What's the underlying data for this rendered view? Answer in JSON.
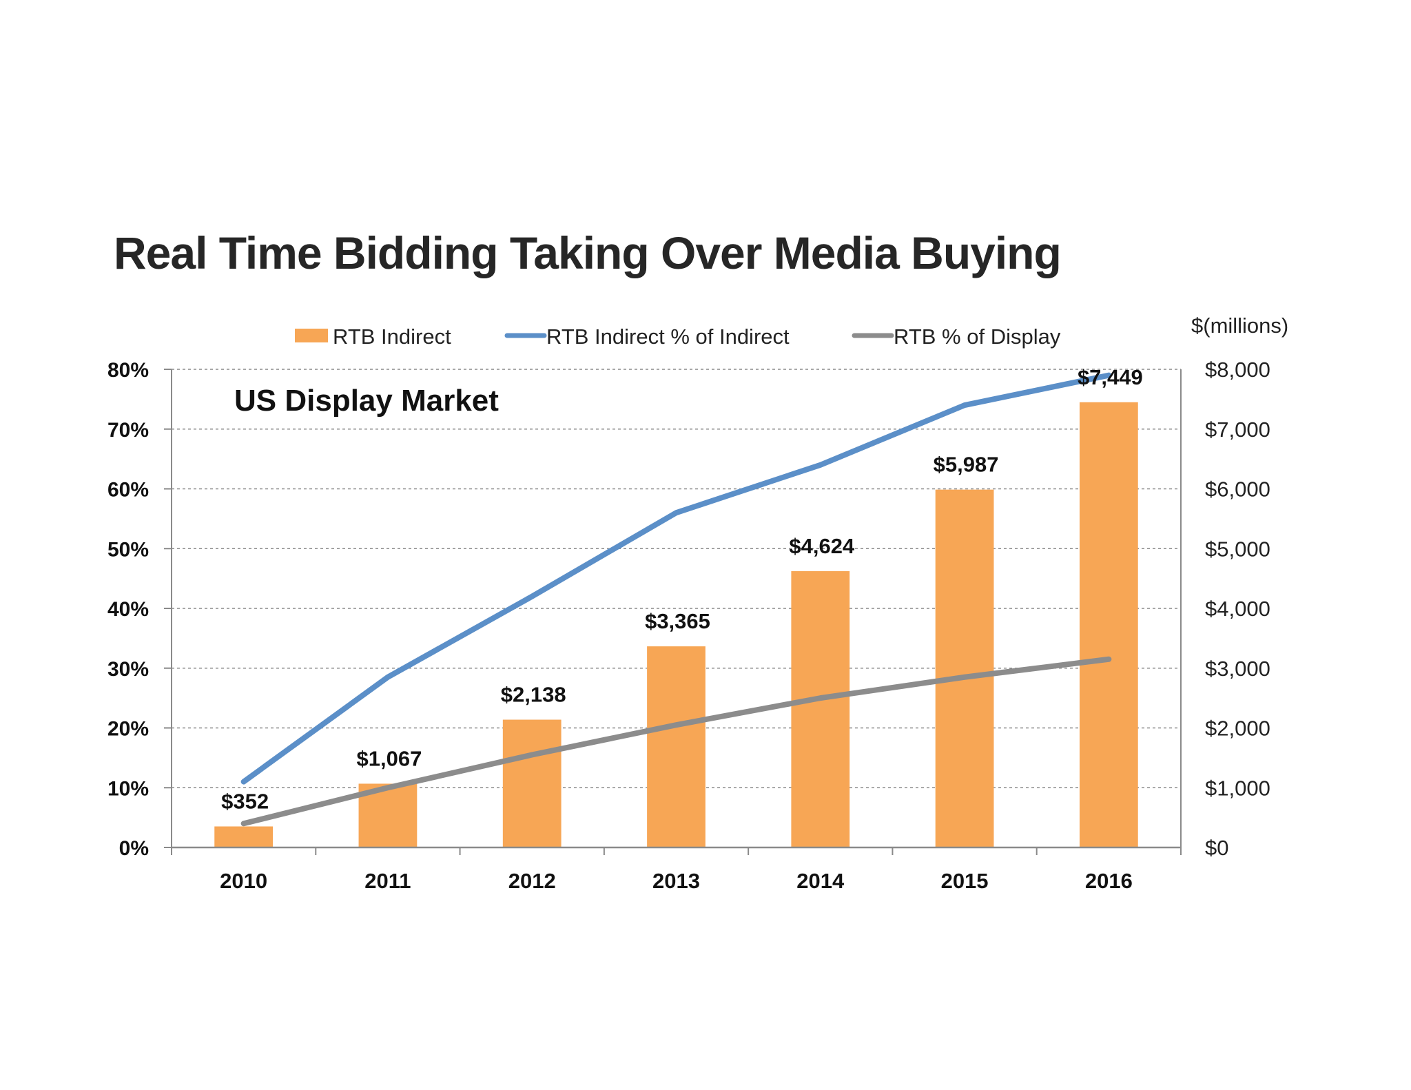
{
  "chart_data": {
    "type": "bar",
    "title": "Real Time Bidding Taking Over Media Buying",
    "subtitle": "US Display Market",
    "categories": [
      "2010",
      "2011",
      "2012",
      "2013",
      "2014",
      "2015",
      "2016"
    ],
    "y2label": "$(millions)",
    "ylim": [
      0,
      80
    ],
    "y2lim": [
      0,
      8000
    ],
    "left_ticks": [
      "0%",
      "10%",
      "20%",
      "30%",
      "40%",
      "50%",
      "60%",
      "70%",
      "80%"
    ],
    "right_ticks": [
      "$0",
      "$1,000",
      "$2,000",
      "$3,000",
      "$4,000",
      "$5,000",
      "$6,000",
      "$7,000",
      "$8,000"
    ],
    "grid": true,
    "legend_position": "top",
    "series": [
      {
        "name": "RTB Indirect",
        "kind": "bar",
        "axis": "right",
        "color": "#F7A655",
        "values": [
          352,
          1067,
          2138,
          3365,
          4624,
          5987,
          7449
        ],
        "labels": [
          "$352",
          "$1,067",
          "$2,138",
          "$3,365",
          "$4,624",
          "$5,987",
          "$7,449"
        ]
      },
      {
        "name": "RTB Indirect % of Indirect",
        "kind": "line",
        "axis": "left",
        "color": "#5B8FC8",
        "values": [
          11,
          28.5,
          42,
          56,
          64,
          74,
          79
        ]
      },
      {
        "name": "RTB % of Display",
        "kind": "line",
        "axis": "left",
        "color": "#8C8C8C",
        "values": [
          4,
          10,
          15.5,
          20.5,
          25,
          28.5,
          31.5
        ]
      }
    ]
  }
}
